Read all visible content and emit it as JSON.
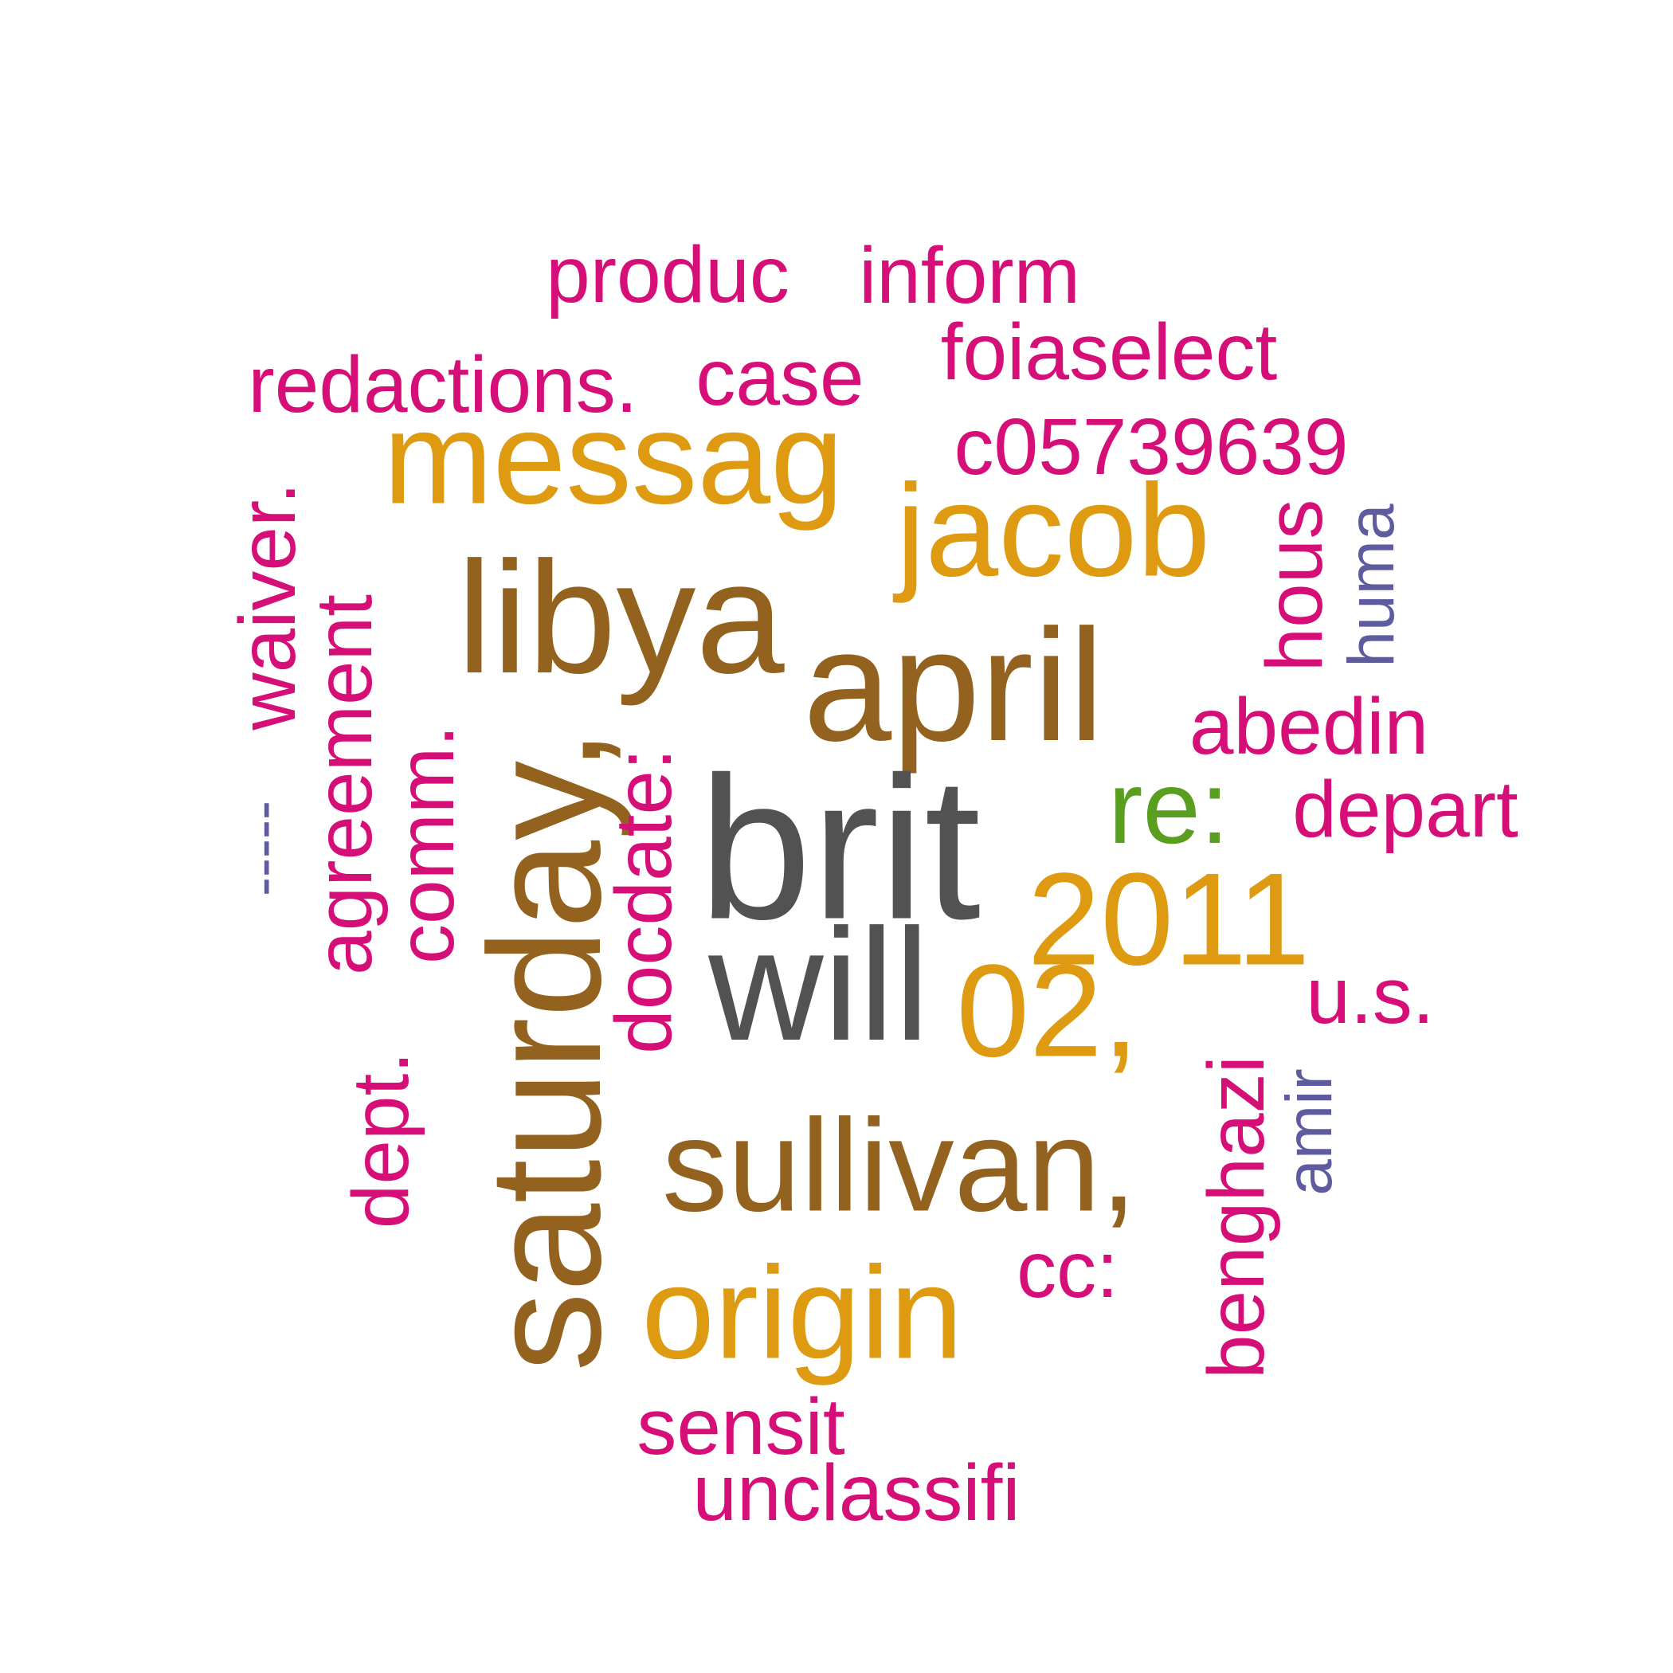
{
  "palette": {
    "magenta": "#D60F78",
    "gold": "#DE9A10",
    "brown": "#93621E",
    "gray": "#525252",
    "green": "#5A9E1F",
    "purple": "#5E5B9E"
  },
  "words": [
    {
      "text": "produc",
      "color": "#D60F78"
    },
    {
      "text": "inform",
      "color": "#D60F78"
    },
    {
      "text": "redactions.",
      "color": "#D60F78"
    },
    {
      "text": "case",
      "color": "#D60F78"
    },
    {
      "text": "foiaselect",
      "color": "#D60F78"
    },
    {
      "text": "c05739639",
      "color": "#D60F78"
    },
    {
      "text": "messag",
      "color": "#DE9A10"
    },
    {
      "text": "jacob",
      "color": "#DE9A10"
    },
    {
      "text": "libya",
      "color": "#93621E"
    },
    {
      "text": "april",
      "color": "#93621E"
    },
    {
      "text": "hous",
      "color": "#D60F78"
    },
    {
      "text": "huma",
      "color": "#5E5B9E"
    },
    {
      "text": "waiver.",
      "color": "#D60F78"
    },
    {
      "text": "agreement",
      "color": "#D60F78"
    },
    {
      "text": "comm.",
      "color": "#D60F78"
    },
    {
      "text": "saturday,",
      "color": "#93621E"
    },
    {
      "text": "docdate:",
      "color": "#D60F78"
    },
    {
      "text": "brit",
      "color": "#525252"
    },
    {
      "text": "re:",
      "color": "#5A9E1F"
    },
    {
      "text": "abedin",
      "color": "#D60F78"
    },
    {
      "text": "depart",
      "color": "#D60F78"
    },
    {
      "text": "-----",
      "color": "#5E5B9E"
    },
    {
      "text": "2011",
      "color": "#DE9A10"
    },
    {
      "text": "will",
      "color": "#525252"
    },
    {
      "text": "02,",
      "color": "#DE9A10"
    },
    {
      "text": "u.s.",
      "color": "#D60F78"
    },
    {
      "text": "dept.",
      "color": "#D60F78"
    },
    {
      "text": "benghazi",
      "color": "#D60F78"
    },
    {
      "text": "amir",
      "color": "#5E5B9E"
    },
    {
      "text": "sullivan,",
      "color": "#93621E"
    },
    {
      "text": "cc:",
      "color": "#D60F78"
    },
    {
      "text": "origin",
      "color": "#DE9A10"
    },
    {
      "text": "sensit",
      "color": "#D60F78"
    },
    {
      "text": "unclassifi",
      "color": "#D60F78"
    }
  ]
}
